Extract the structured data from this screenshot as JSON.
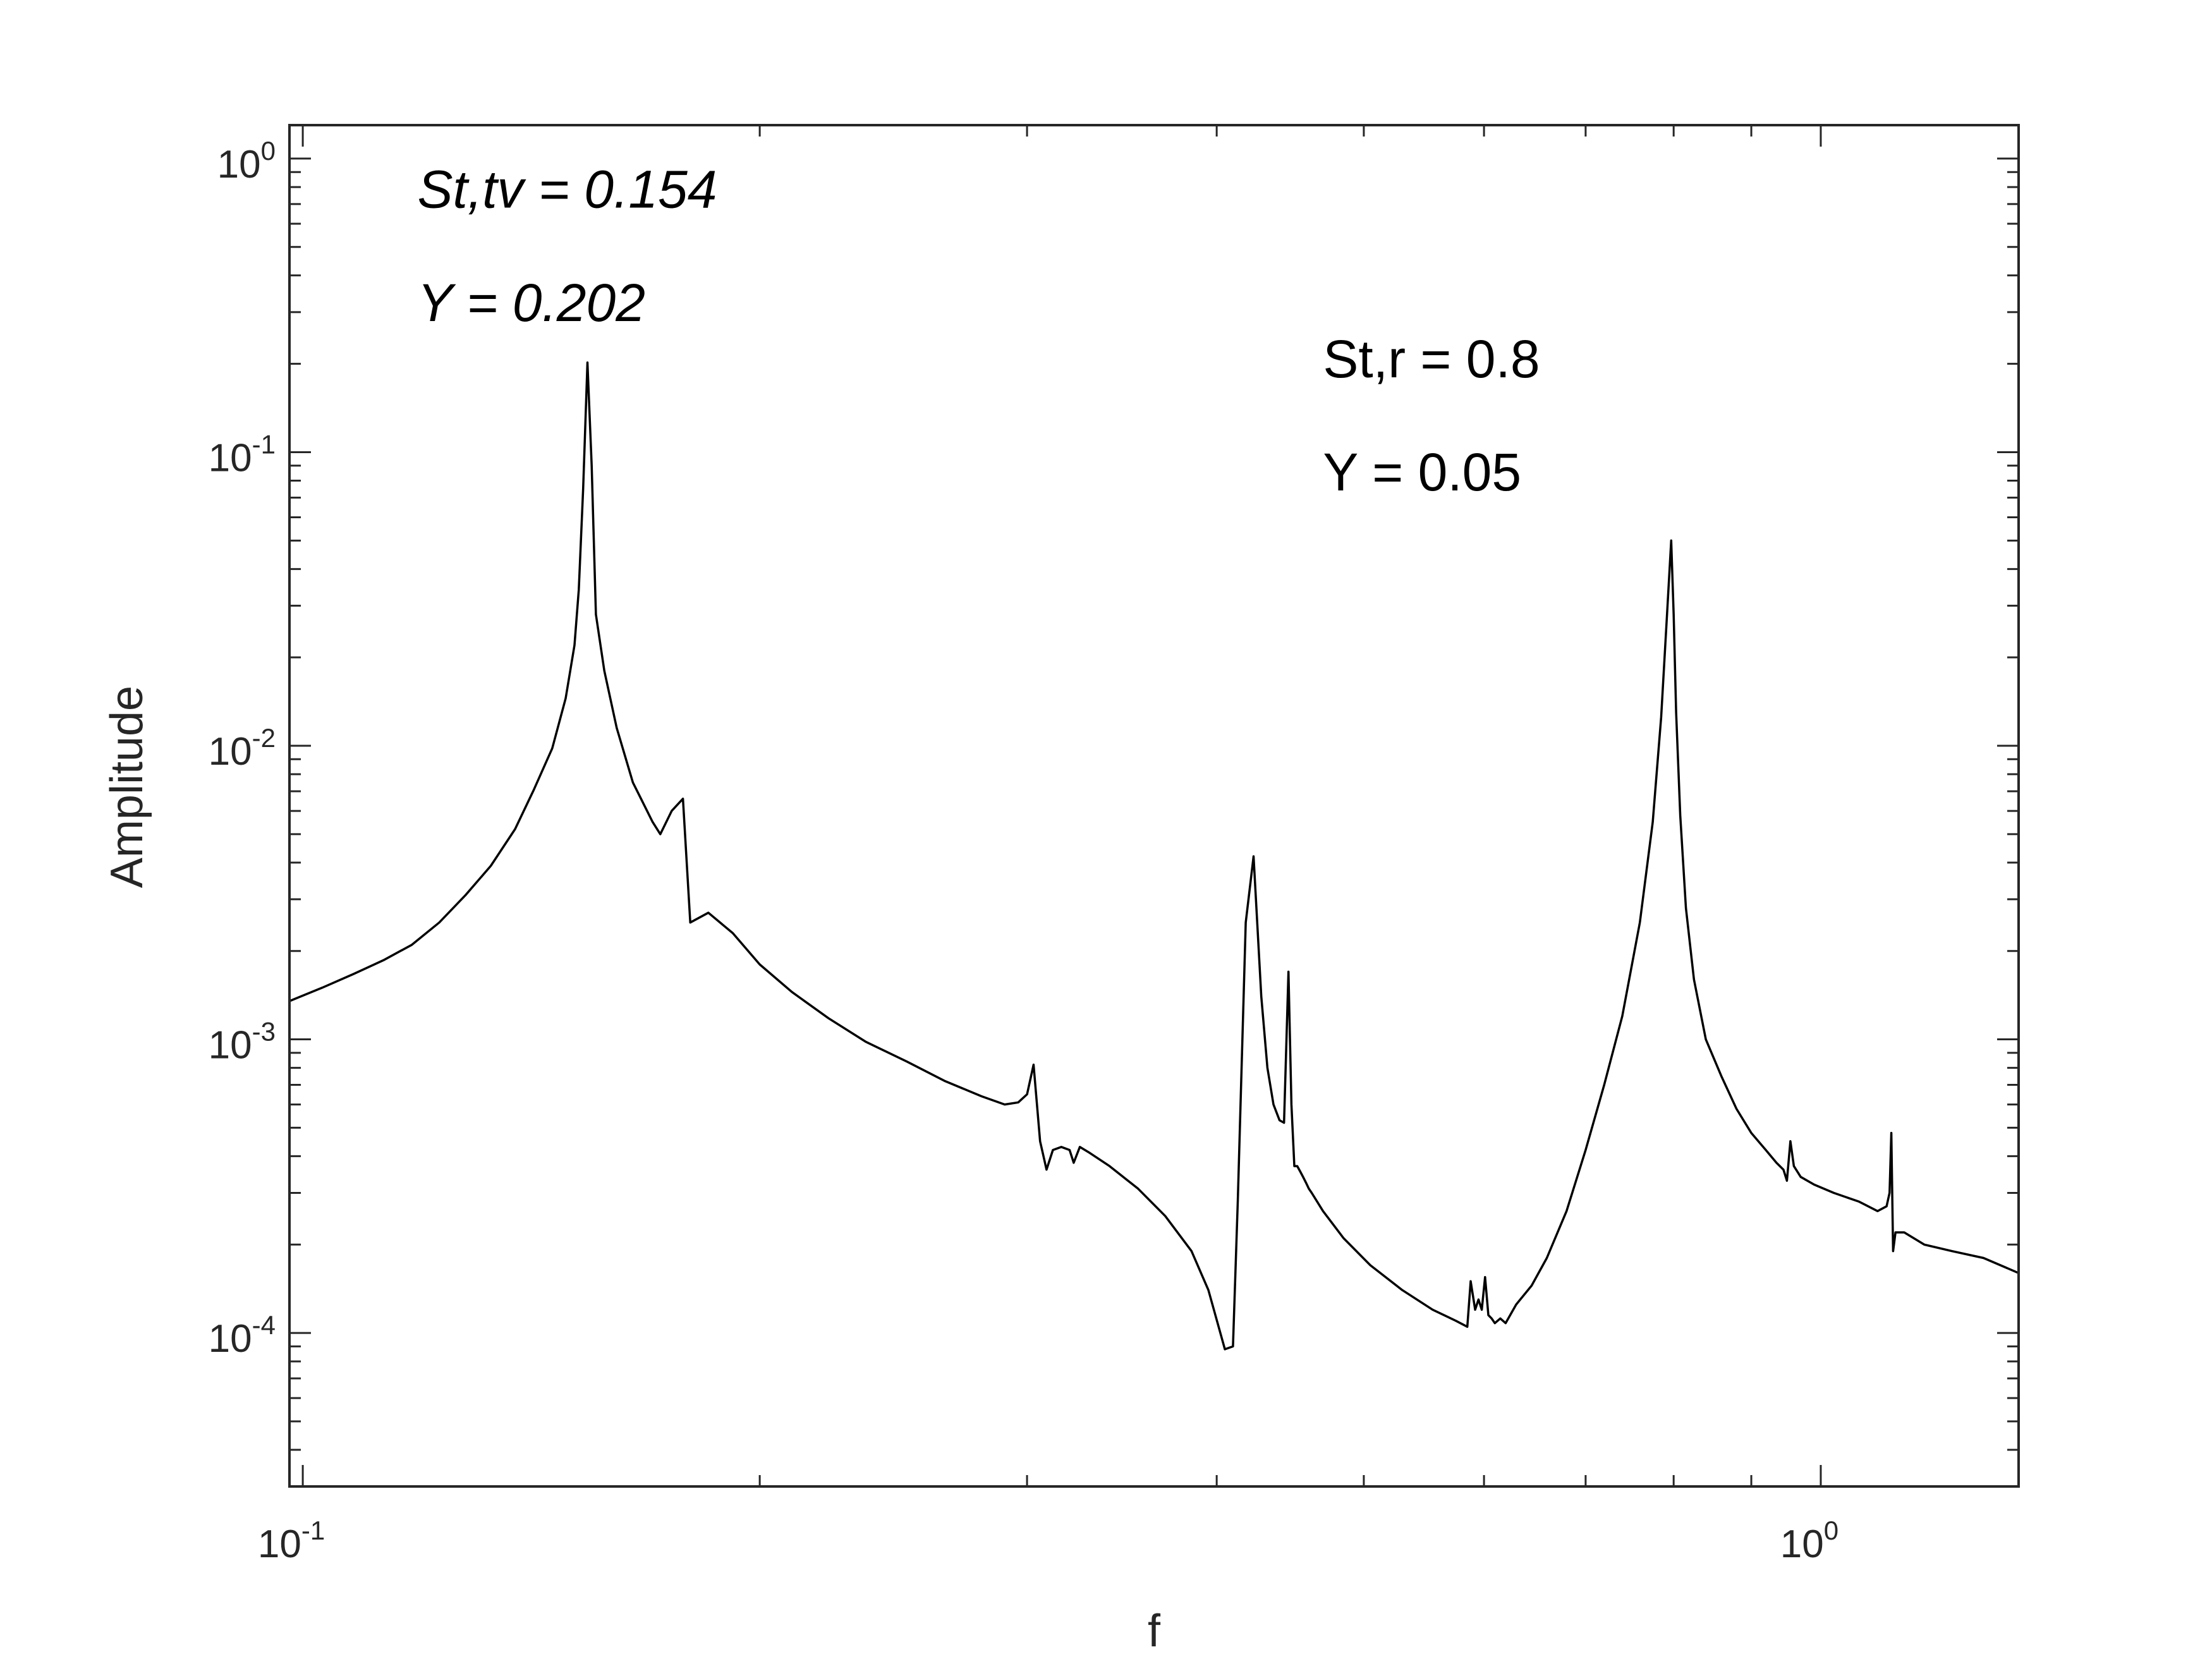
{
  "chart_data": {
    "type": "line",
    "title": "",
    "xlabel": "f",
    "ylabel": "Amplitude",
    "xscale": "log",
    "yscale": "log",
    "xlim": [
      0.098,
      1.35
    ],
    "ylim": [
      3e-05,
      1.3
    ],
    "grid": false,
    "legend": "none",
    "x_ticks": [
      {
        "base": "10",
        "exp": "-1",
        "value": 0.1
      },
      {
        "base": "10",
        "exp": "0",
        "value": 1.0
      }
    ],
    "y_ticks": [
      {
        "base": "10",
        "exp": "0",
        "value": 1.0
      },
      {
        "base": "10",
        "exp": "-1",
        "value": 0.1
      },
      {
        "base": "10",
        "exp": "-2",
        "value": 0.01
      },
      {
        "base": "10",
        "exp": "-3",
        "value": 0.001
      },
      {
        "base": "10",
        "exp": "-4",
        "value": 0.0001
      }
    ],
    "annotations": [
      {
        "text": "St,tv = 0.154",
        "x": 0.119,
        "y": 0.68,
        "style": "italic"
      },
      {
        "text": "Y = 0.202",
        "x": 0.119,
        "y": 0.28,
        "style": "italic"
      },
      {
        "text": "St,r = 0.8",
        "x": 0.47,
        "y": 0.18,
        "style": "normal"
      },
      {
        "text": "Y = 0.05",
        "x": 0.47,
        "y": 0.074,
        "style": "normal"
      }
    ],
    "series": [
      {
        "color": "#000000",
        "x": [
          0.098,
          0.103,
          0.108,
          0.113,
          0.118,
          0.123,
          0.128,
          0.133,
          0.138,
          0.142,
          0.146,
          0.149,
          0.151,
          0.152,
          0.153,
          0.154,
          0.155,
          0.156,
          0.158,
          0.161,
          0.165,
          0.17,
          0.172,
          0.175,
          0.178,
          0.18,
          0.185,
          0.192,
          0.2,
          0.21,
          0.222,
          0.235,
          0.25,
          0.265,
          0.28,
          0.29,
          0.296,
          0.3,
          0.303,
          0.306,
          0.309,
          0.312,
          0.316,
          0.32,
          0.322,
          0.325,
          0.33,
          0.34,
          0.355,
          0.37,
          0.385,
          0.395,
          0.405,
          0.41,
          0.413,
          0.418,
          0.423,
          0.428,
          0.432,
          0.436,
          0.44,
          0.443,
          0.446,
          0.448,
          0.45,
          0.452,
          0.454,
          0.456,
          0.458,
          0.46,
          0.462,
          0.47,
          0.485,
          0.505,
          0.53,
          0.555,
          0.575,
          0.585,
          0.588,
          0.592,
          0.595,
          0.598,
          0.601,
          0.604,
          0.607,
          0.61,
          0.615,
          0.62,
          0.63,
          0.645,
          0.66,
          0.68,
          0.7,
          0.72,
          0.74,
          0.76,
          0.775,
          0.785,
          0.792,
          0.797,
          0.8,
          0.803,
          0.808,
          0.815,
          0.825,
          0.84,
          0.86,
          0.88,
          0.9,
          0.92,
          0.935,
          0.945,
          0.95,
          0.955,
          0.96,
          0.97,
          0.99,
          1.02,
          1.06,
          1.09,
          1.105,
          1.11,
          1.113,
          1.116,
          1.12,
          1.135,
          1.17,
          1.22,
          1.28,
          1.35
        ],
        "y": [
          0.00135,
          0.0015,
          0.00167,
          0.00186,
          0.0021,
          0.0025,
          0.0031,
          0.0039,
          0.0052,
          0.0071,
          0.0098,
          0.0145,
          0.022,
          0.034,
          0.075,
          0.202,
          0.09,
          0.028,
          0.018,
          0.0115,
          0.0075,
          0.0055,
          0.005,
          0.006,
          0.0066,
          0.0025,
          0.0027,
          0.0023,
          0.0018,
          0.00145,
          0.00118,
          0.00098,
          0.00084,
          0.00072,
          0.00064,
          0.0006,
          0.00061,
          0.00065,
          0.00082,
          0.00045,
          0.00036,
          0.00042,
          0.00043,
          0.00042,
          0.00038,
          0.00043,
          0.00041,
          0.00037,
          0.00031,
          0.00025,
          0.00019,
          0.00014,
          8.8e-05,
          9e-05,
          0.00028,
          0.0025,
          0.0042,
          0.0014,
          0.0008,
          0.0006,
          0.00053,
          0.00052,
          0.0017,
          0.0006,
          0.00037,
          0.00037,
          0.000355,
          0.00034,
          0.000325,
          0.00031,
          0.0003,
          0.00026,
          0.00021,
          0.00017,
          0.00014,
          0.00012,
          0.00011,
          0.000105,
          0.00015,
          0.00012,
          0.00013,
          0.00012,
          0.000155,
          0.000115,
          0.000112,
          0.000108,
          0.000112,
          0.000108,
          0.000125,
          0.000145,
          0.00018,
          0.00026,
          0.00042,
          0.0007,
          0.0012,
          0.0025,
          0.0055,
          0.0125,
          0.028,
          0.05,
          0.028,
          0.013,
          0.0058,
          0.0028,
          0.0016,
          0.001,
          0.00075,
          0.00058,
          0.00048,
          0.00042,
          0.00038,
          0.00036,
          0.00033,
          0.00045,
          0.00037,
          0.00034,
          0.00032,
          0.0003,
          0.00028,
          0.00026,
          0.00027,
          0.0003,
          0.00048,
          0.00019,
          0.00022,
          0.00022,
          0.0002,
          0.00019,
          0.00018,
          0.00016
        ]
      }
    ]
  }
}
